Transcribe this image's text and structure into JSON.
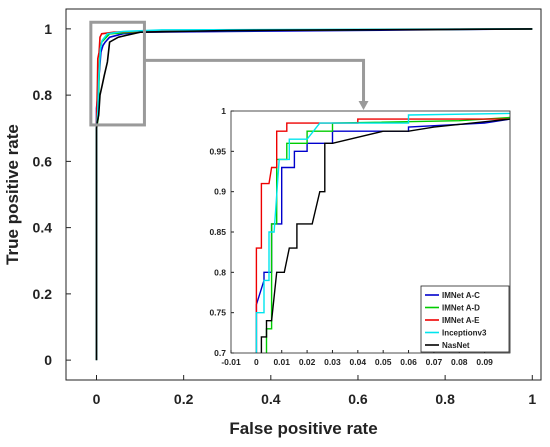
{
  "chart_data": [
    {
      "type": "line",
      "xlabel": "False positive rate",
      "ylabel": "True positive rate",
      "xlim": [
        -0.07,
        1.02
      ],
      "ylim": [
        -0.06,
        1.06
      ],
      "xticks": [
        0,
        0.2,
        0.4,
        0.6,
        0.8,
        1
      ],
      "yticks": [
        0,
        0.2,
        0.4,
        0.6,
        0.8,
        1
      ],
      "xtick_labels": [
        "0",
        "0.2",
        "0.4",
        "0.6",
        "0.8",
        "1"
      ],
      "ytick_labels": [
        "0",
        "0.2",
        "0.4",
        "0.6",
        "0.8",
        "1"
      ],
      "grid": false,
      "zoom_box": {
        "x": [
          -0.013,
          0.11
        ],
        "y": [
          0.71,
          1.02
        ]
      },
      "series": [
        {
          "name": "IMNet A-C",
          "color": "#0000cc",
          "points": [
            [
              0,
              0
            ],
            [
              0,
              0.7
            ],
            [
              0,
              0.76
            ],
            [
              0.003,
              0.8
            ],
            [
              0.006,
              0.86
            ],
            [
              0.01,
              0.93
            ],
            [
              0.015,
              0.95
            ],
            [
              0.02,
              0.96
            ],
            [
              0.03,
              0.975
            ],
            [
              0.06,
              0.985
            ],
            [
              0.1,
              0.99
            ],
            [
              1,
              1
            ]
          ]
        },
        {
          "name": "IMNet A-D",
          "color": "#00cc00",
          "points": [
            [
              0,
              0
            ],
            [
              0,
              0.7
            ],
            [
              0.004,
              0.73
            ],
            [
              0.006,
              0.86
            ],
            [
              0.008,
              0.94
            ],
            [
              0.012,
              0.96
            ],
            [
              0.03,
              0.985
            ],
            [
              0.1,
              0.992
            ],
            [
              0.3,
              0.995
            ],
            [
              1,
              1
            ]
          ]
        },
        {
          "name": "IMNet A-E",
          "color": "#ee0000",
          "points": [
            [
              0,
              0
            ],
            [
              0,
              0.7
            ],
            [
              0.002,
              0.83
            ],
            [
              0.003,
              0.91
            ],
            [
              0.006,
              0.93
            ],
            [
              0.008,
              0.975
            ],
            [
              0.012,
              0.985
            ],
            [
              0.04,
              0.99
            ],
            [
              0.15,
              0.995
            ],
            [
              1,
              1
            ]
          ]
        },
        {
          "name": "Inceptionv3",
          "color": "#00e5ee",
          "points": [
            [
              0,
              0
            ],
            [
              0,
              0.7
            ],
            [
              0.003,
              0.75
            ],
            [
              0.005,
              0.85
            ],
            [
              0.009,
              0.94
            ],
            [
              0.013,
              0.965
            ],
            [
              0.025,
              0.985
            ],
            [
              0.06,
              0.992
            ],
            [
              0.15,
              0.997
            ],
            [
              1,
              1
            ]
          ]
        },
        {
          "name": "NasNet",
          "color": "#000000",
          "points": [
            [
              0,
              0
            ],
            [
              0,
              0.7
            ],
            [
              0.002,
              0.72
            ],
            [
              0.005,
              0.74
            ],
            [
              0.008,
              0.8
            ],
            [
              0.013,
              0.83
            ],
            [
              0.018,
              0.86
            ],
            [
              0.025,
              0.9
            ],
            [
              0.03,
              0.96
            ],
            [
              0.05,
              0.975
            ],
            [
              0.1,
              0.99
            ],
            [
              0.3,
              0.995
            ],
            [
              1,
              1
            ]
          ]
        }
      ]
    },
    {
      "type": "line",
      "title": "",
      "xlim": [
        -0.01,
        0.1
      ],
      "ylim": [
        0.7,
        1
      ],
      "xticks": [
        -0.01,
        0,
        0.01,
        0.02,
        0.03,
        0.04,
        0.05,
        0.06,
        0.07,
        0.08,
        0.09
      ],
      "yticks": [
        0.7,
        0.75,
        0.8,
        0.85,
        0.9,
        0.95,
        1
      ],
      "xtick_labels": [
        "-0.01",
        "0",
        "0.01",
        "0.02",
        "0.03",
        "0.04",
        "0.05",
        "0.06",
        "0.07",
        "0.08",
        "0.09"
      ],
      "ytick_labels": [
        "0.7",
        "0.75",
        "0.8",
        "0.85",
        "0.9",
        "0.95",
        "1"
      ],
      "grid": false,
      "legend": {
        "position": "bottom-right",
        "entries": [
          "IMNet A-C",
          "IMNet A-D",
          "IMNet A-E",
          "Inceptionv3",
          "NasNet"
        ]
      },
      "series": [
        {
          "name": "IMNet A-C",
          "color": "#0000cc",
          "points": [
            [
              0,
              0.7
            ],
            [
              0,
              0.76
            ],
            [
              0.003,
              0.79
            ],
            [
              0.003,
              0.8
            ],
            [
              0.006,
              0.8
            ],
            [
              0.006,
              0.86
            ],
            [
              0.01,
              0.86
            ],
            [
              0.01,
              0.93
            ],
            [
              0.015,
              0.93
            ],
            [
              0.015,
              0.95
            ],
            [
              0.02,
              0.95
            ],
            [
              0.02,
              0.96
            ],
            [
              0.03,
              0.96
            ],
            [
              0.03,
              0.975
            ],
            [
              0.06,
              0.975
            ],
            [
              0.06,
              0.98
            ],
            [
              0.09,
              0.985
            ],
            [
              0.1,
              0.99
            ]
          ]
        },
        {
          "name": "IMNet A-D",
          "color": "#00cc00",
          "points": [
            [
              0.004,
              0.7
            ],
            [
              0.004,
              0.73
            ],
            [
              0.006,
              0.73
            ],
            [
              0.006,
              0.86
            ],
            [
              0.008,
              0.86
            ],
            [
              0.008,
              0.94
            ],
            [
              0.012,
              0.94
            ],
            [
              0.012,
              0.96
            ],
            [
              0.02,
              0.96
            ],
            [
              0.02,
              0.975
            ],
            [
              0.03,
              0.975
            ],
            [
              0.03,
              0.985
            ],
            [
              0.08,
              0.988
            ],
            [
              0.1,
              0.992
            ]
          ]
        },
        {
          "name": "IMNet A-E",
          "color": "#ee0000",
          "points": [
            [
              0,
              0.7
            ],
            [
              0,
              0.83
            ],
            [
              0.002,
              0.83
            ],
            [
              0.002,
              0.91
            ],
            [
              0.005,
              0.91
            ],
            [
              0.006,
              0.93
            ],
            [
              0.008,
              0.93
            ],
            [
              0.008,
              0.975
            ],
            [
              0.012,
              0.975
            ],
            [
              0.012,
              0.985
            ],
            [
              0.04,
              0.985
            ],
            [
              0.04,
              0.99
            ],
            [
              0.1,
              0.99
            ]
          ]
        },
        {
          "name": "Inceptionv3",
          "color": "#00e5ee",
          "points": [
            [
              0,
              0.7
            ],
            [
              0,
              0.75
            ],
            [
              0.003,
              0.75
            ],
            [
              0.003,
              0.79
            ],
            [
              0.005,
              0.79
            ],
            [
              0.005,
              0.85
            ],
            [
              0.007,
              0.85
            ],
            [
              0.009,
              0.94
            ],
            [
              0.013,
              0.94
            ],
            [
              0.013,
              0.965
            ],
            [
              0.02,
              0.965
            ],
            [
              0.025,
              0.985
            ],
            [
              0.06,
              0.985
            ],
            [
              0.06,
              0.995
            ],
            [
              0.1,
              0.997
            ]
          ]
        },
        {
          "name": "NasNet",
          "color": "#000000",
          "points": [
            [
              0.002,
              0.7
            ],
            [
              0.002,
              0.72
            ],
            [
              0.004,
              0.72
            ],
            [
              0.004,
              0.74
            ],
            [
              0.006,
              0.74
            ],
            [
              0.008,
              0.8
            ],
            [
              0.011,
              0.8
            ],
            [
              0.013,
              0.83
            ],
            [
              0.016,
              0.83
            ],
            [
              0.016,
              0.86
            ],
            [
              0.02,
              0.86
            ],
            [
              0.022,
              0.86
            ],
            [
              0.025,
              0.9
            ],
            [
              0.027,
              0.9
            ],
            [
              0.027,
              0.96
            ],
            [
              0.03,
              0.96
            ],
            [
              0.05,
              0.975
            ],
            [
              0.06,
              0.975
            ],
            [
              0.07,
              0.98
            ],
            [
              0.1,
              0.99
            ]
          ]
        }
      ]
    }
  ]
}
